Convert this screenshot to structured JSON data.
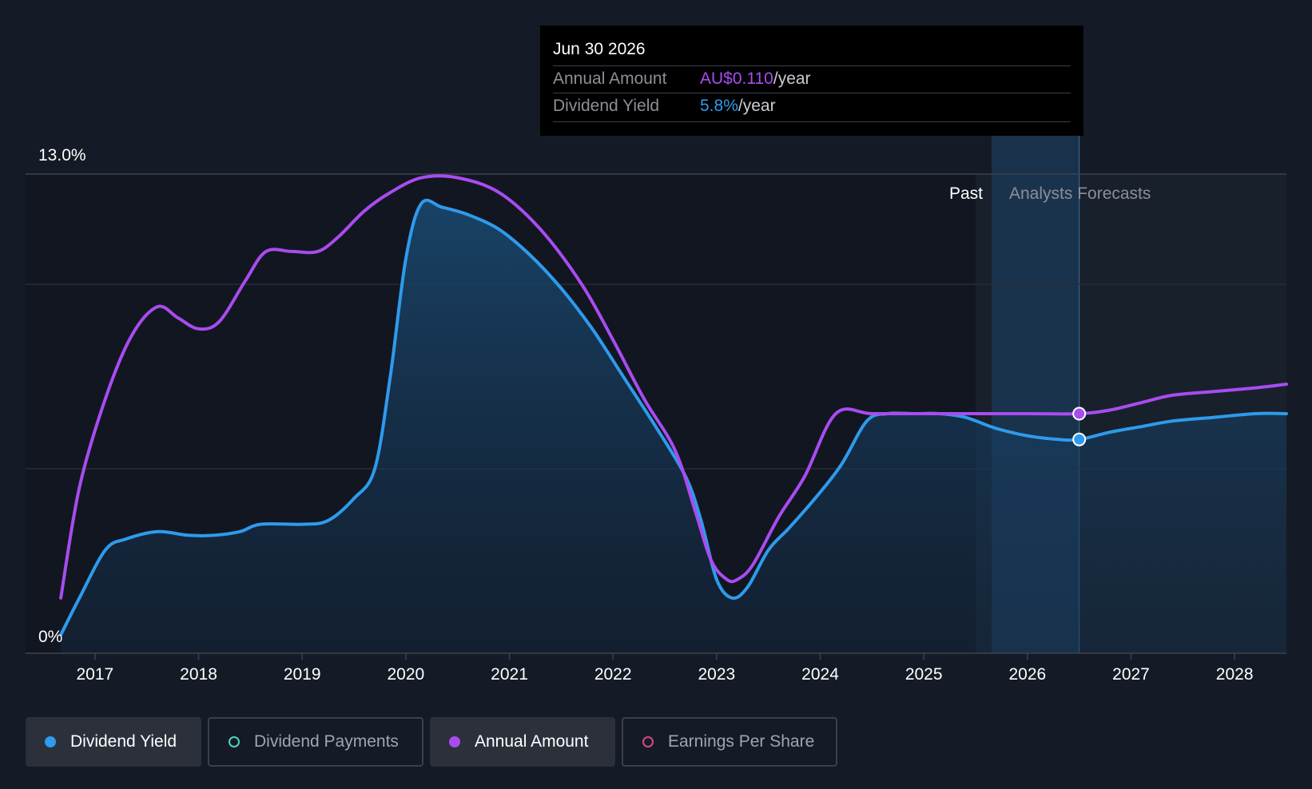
{
  "tooltip": {
    "date": "Jun 30 2026",
    "annual_label": "Annual Amount",
    "annual_value": "AU$0.110",
    "annual_unit": "/year",
    "yield_label": "Dividend Yield",
    "yield_value": "5.8%",
    "yield_unit": "/year"
  },
  "period_labels": {
    "past": "Past",
    "forecast": "Analysts Forecasts"
  },
  "legend": [
    {
      "label": "Dividend Yield",
      "active": true,
      "color": "#2e9bec"
    },
    {
      "label": "Dividend Payments",
      "active": false,
      "color": "#4fd1c5"
    },
    {
      "label": "Annual Amount",
      "active": true,
      "color": "#a84cf0"
    },
    {
      "label": "Earnings Per Share",
      "active": false,
      "color": "#d04a86"
    }
  ],
  "chart_data": {
    "type": "line",
    "ylim": [
      0,
      13
    ],
    "y_tick_labels": [
      "13.0%",
      "0%"
    ],
    "xlim": [
      2016.33,
      2028.5
    ],
    "x_ticks": [
      2017,
      2018,
      2019,
      2020,
      2021,
      2022,
      2023,
      2024,
      2025,
      2026,
      2027,
      2028
    ],
    "forecast_start": 2025.5,
    "highlight_x": 2026.5,
    "series": [
      {
        "name": "Dividend Yield",
        "color": "#2e9bec",
        "filled": true,
        "unit": "%",
        "x": [
          2016.67,
          2016.85,
          2017.1,
          2017.3,
          2017.6,
          2017.9,
          2018.15,
          2018.4,
          2018.6,
          2019.0,
          2019.25,
          2019.5,
          2019.7,
          2019.85,
          2020.0,
          2020.15,
          2020.35,
          2020.6,
          2020.9,
          2021.2,
          2021.5,
          2021.8,
          2022.1,
          2022.4,
          2022.7,
          2022.85,
          2023.0,
          2023.15,
          2023.3,
          2023.5,
          2023.7,
          2023.95,
          2024.2,
          2024.45,
          2024.65,
          2024.9,
          2025.15,
          2025.4,
          2025.7,
          2026.0,
          2026.3,
          2026.5,
          2026.8,
          2027.1,
          2027.4,
          2027.8,
          2028.2,
          2028.5
        ],
        "values": [
          0.5,
          1.5,
          2.8,
          3.1,
          3.3,
          3.2,
          3.2,
          3.3,
          3.5,
          3.5,
          3.6,
          4.2,
          5.0,
          7.5,
          10.7,
          12.2,
          12.1,
          11.9,
          11.5,
          10.8,
          9.9,
          8.8,
          7.5,
          6.2,
          4.8,
          3.6,
          2.0,
          1.5,
          1.8,
          2.8,
          3.4,
          4.2,
          5.1,
          6.3,
          6.5,
          6.5,
          6.5,
          6.4,
          6.1,
          5.9,
          5.8,
          5.8,
          6.0,
          6.15,
          6.3,
          6.4,
          6.5,
          6.5
        ]
      },
      {
        "name": "Annual Amount",
        "color": "#a84cf0",
        "filled": false,
        "unit": "AU$",
        "x": [
          2016.67,
          2016.85,
          2017.1,
          2017.35,
          2017.6,
          2017.8,
          2018.0,
          2018.2,
          2018.45,
          2018.65,
          2018.9,
          2019.15,
          2019.35,
          2019.6,
          2019.85,
          2020.15,
          2020.5,
          2020.9,
          2021.3,
          2021.7,
          2022.0,
          2022.3,
          2022.6,
          2022.8,
          2022.95,
          2023.1,
          2023.2,
          2023.35,
          2023.6,
          2023.85,
          2024.15,
          2024.5,
          2025.0,
          2025.5,
          2026.0,
          2026.5,
          2026.8,
          2027.1,
          2027.4,
          2027.8,
          2028.2,
          2028.5
        ],
        "values": [
          1.5,
          4.5,
          6.9,
          8.6,
          9.4,
          9.1,
          8.8,
          9.0,
          10.1,
          10.9,
          10.9,
          10.9,
          11.3,
          12.0,
          12.5,
          12.9,
          12.9,
          12.5,
          11.5,
          10.0,
          8.5,
          6.9,
          5.5,
          3.8,
          2.5,
          2.0,
          2.0,
          2.4,
          3.7,
          4.8,
          6.5,
          6.5,
          6.5,
          6.5,
          6.5,
          6.5,
          6.6,
          6.8,
          7.0,
          7.1,
          7.2,
          7.3
        ]
      }
    ]
  }
}
